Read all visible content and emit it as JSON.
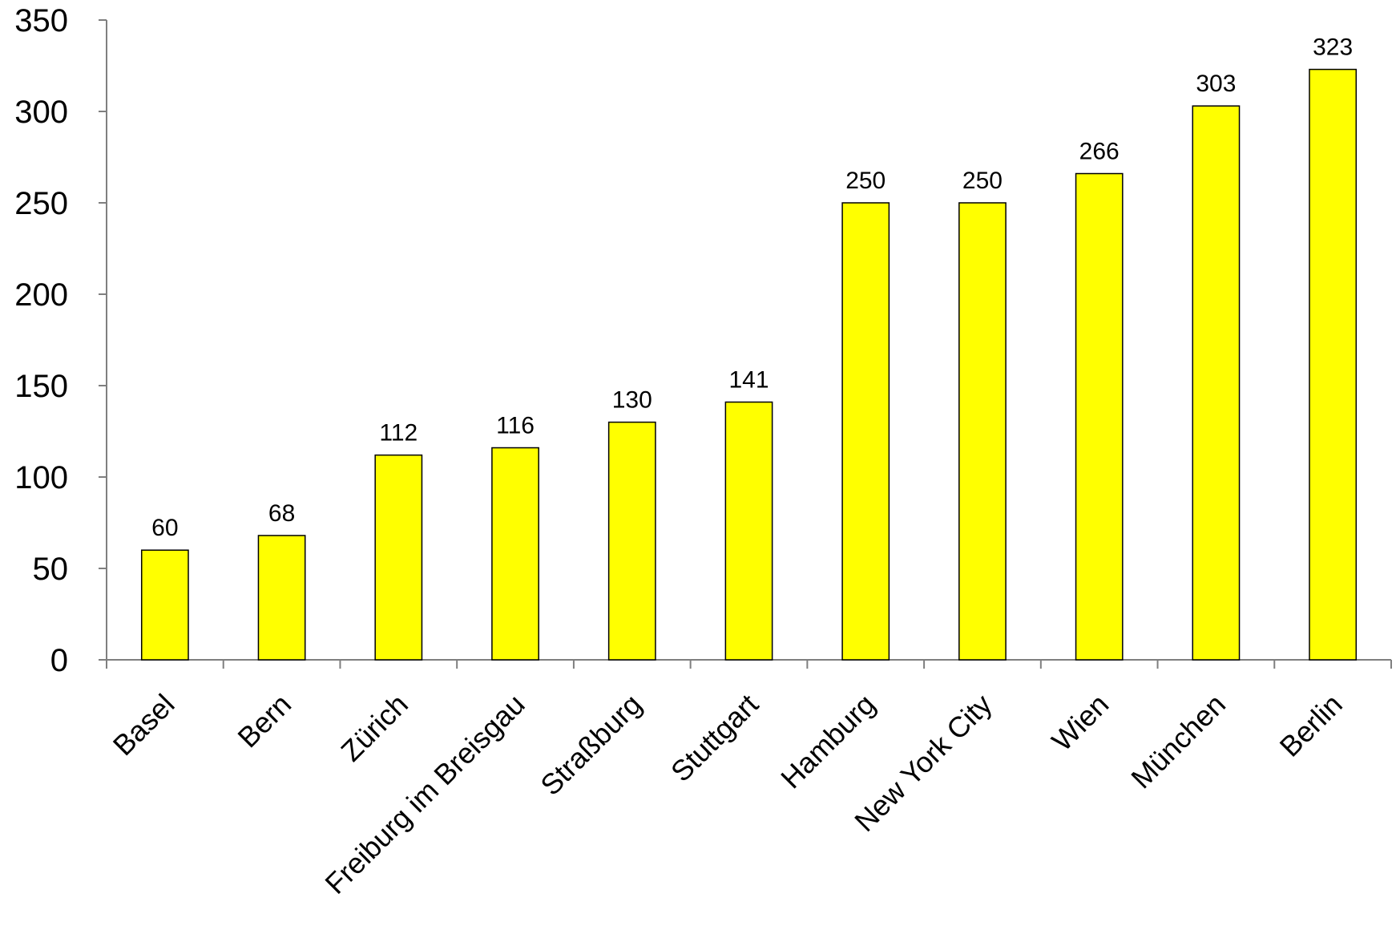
{
  "chart_data": {
    "type": "bar",
    "categories": [
      "Basel",
      "Bern",
      "Zürich",
      "Freiburg im Breisgau",
      "Straßburg",
      "Stuttgart",
      "Hamburg",
      "New York City",
      "Wien",
      "München",
      "Berlin"
    ],
    "values": [
      60,
      68,
      112,
      116,
      130,
      141,
      250,
      250,
      266,
      303,
      323
    ],
    "data_labels": [
      "60",
      "68",
      "112",
      "116",
      "130",
      "141",
      "250",
      "250",
      "266",
      "303",
      "323"
    ],
    "title": "",
    "xlabel": "",
    "ylabel": "",
    "ylim": [
      0,
      350
    ],
    "yticks": [
      0,
      50,
      100,
      150,
      200,
      250,
      300,
      350
    ],
    "ytick_labels": [
      "0",
      "50",
      "100",
      "150",
      "200",
      "250",
      "300",
      "350"
    ],
    "grid": false,
    "legend": "none",
    "colors": {
      "bar_fill": "#FFFF00",
      "bar_stroke": "#000000",
      "axis": "#7f7f7f"
    }
  }
}
